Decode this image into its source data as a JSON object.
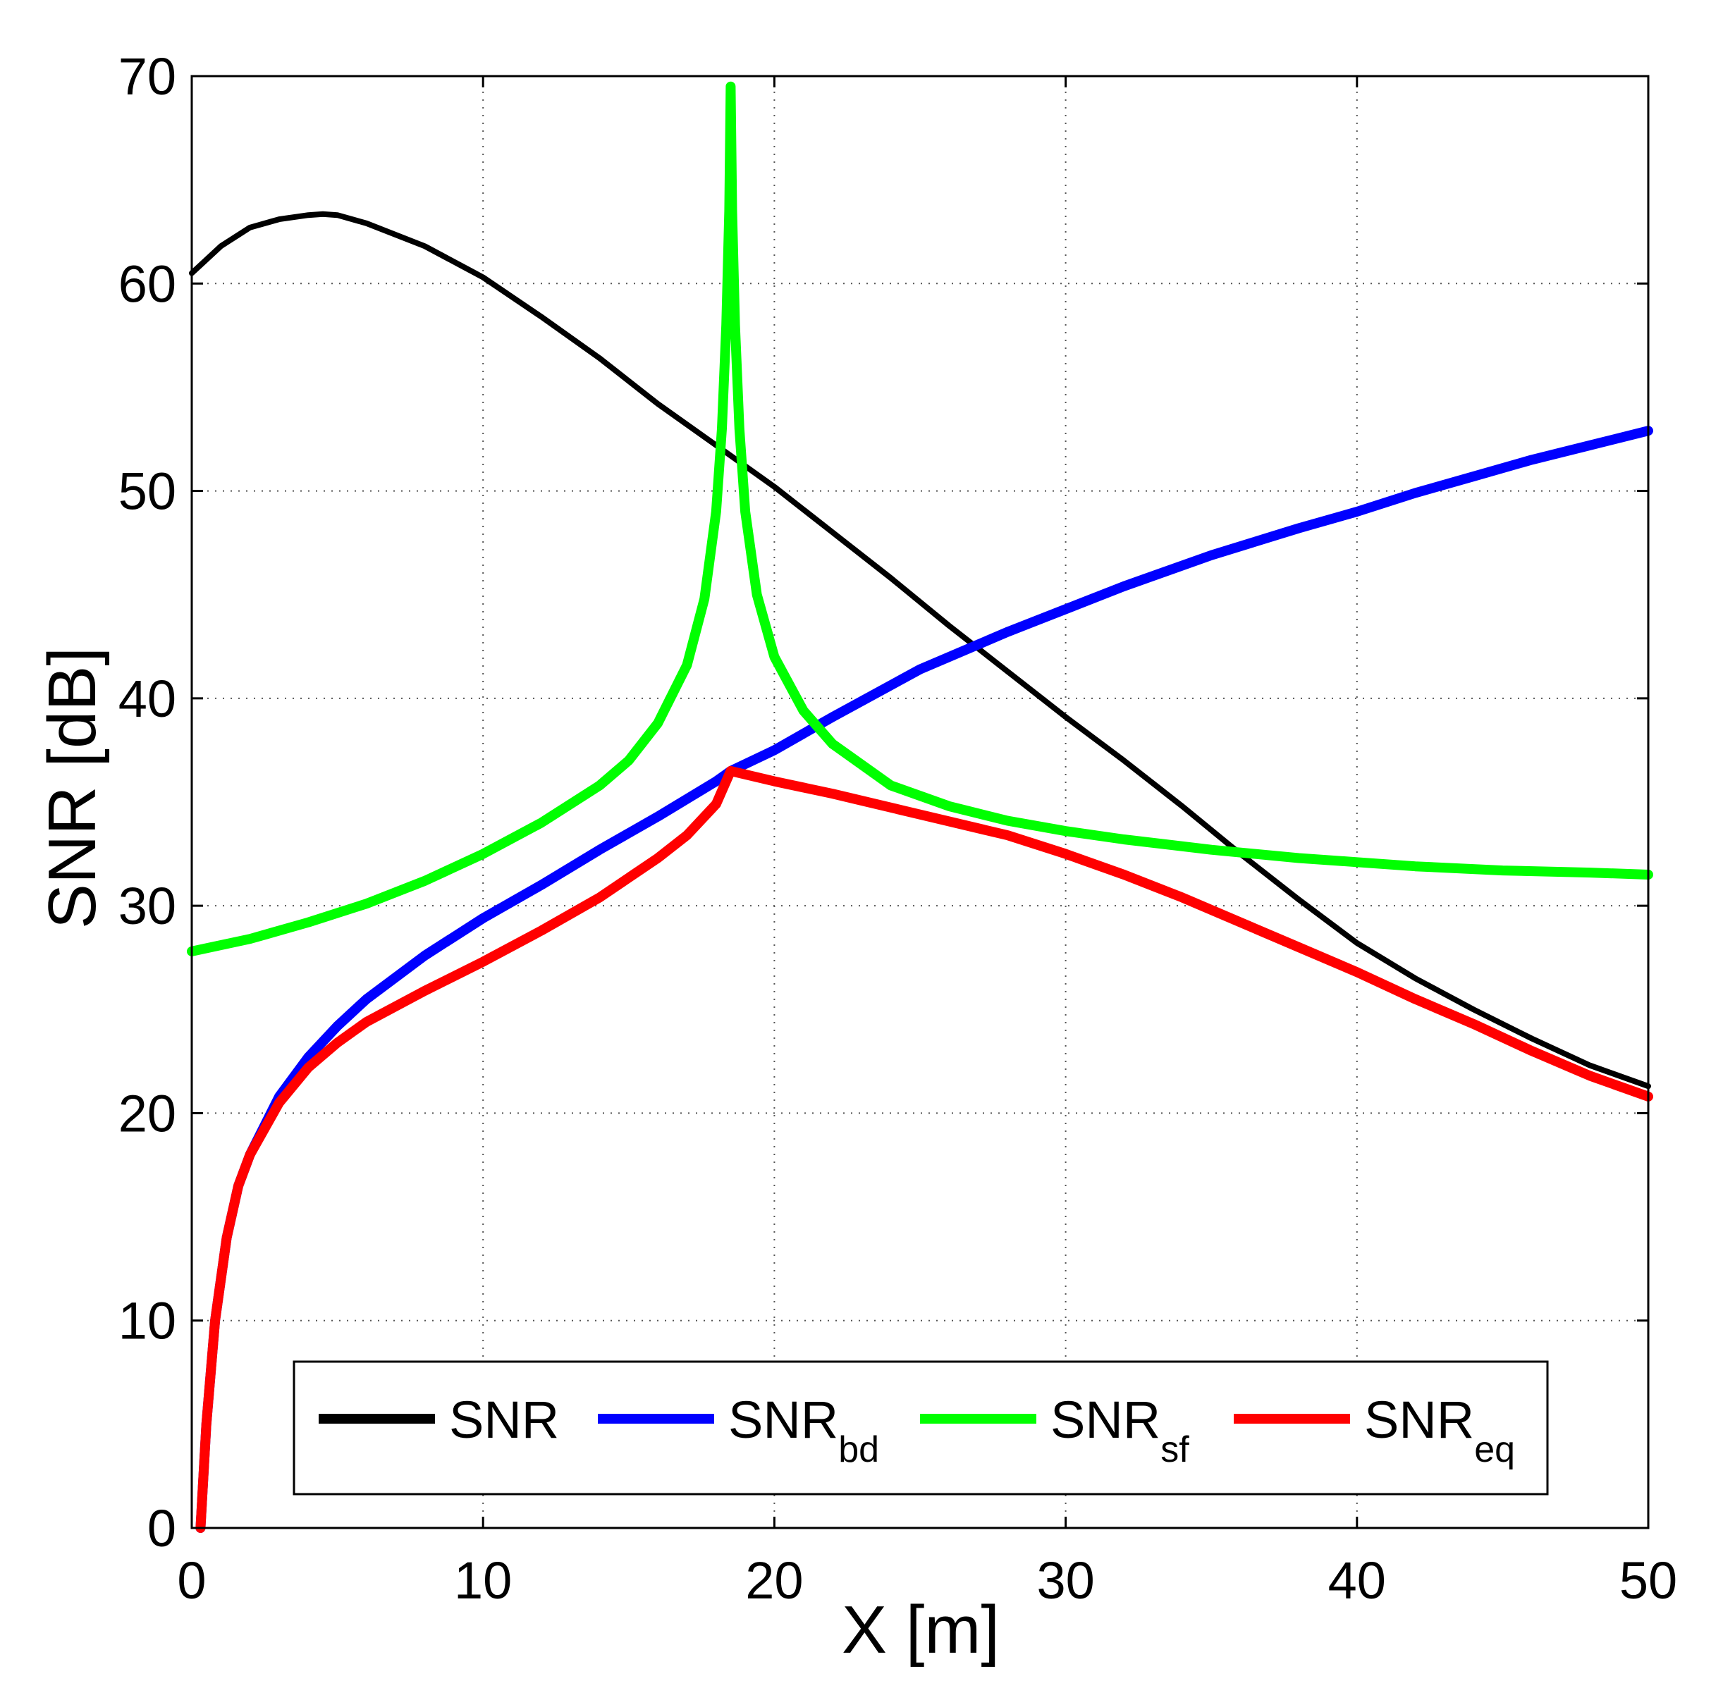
{
  "chart_data": {
    "type": "line",
    "title": "",
    "xlabel": "X [m]",
    "ylabel": "SNR [dB]",
    "xlim": [
      0,
      50
    ],
    "ylim": [
      0,
      70
    ],
    "xticks": [
      0,
      10,
      20,
      30,
      40,
      50
    ],
    "yticks": [
      0,
      10,
      20,
      30,
      40,
      50,
      60,
      70
    ],
    "xtick_labels": [
      "0",
      "10",
      "20",
      "30",
      "40",
      "50"
    ],
    "ytick_labels": [
      "0",
      "10",
      "20",
      "30",
      "40",
      "50",
      "60",
      "70"
    ],
    "grid": true,
    "legend_position": "bottom-center",
    "series": [
      {
        "name": "SNR",
        "label_main": "SNR",
        "label_sub": "",
        "color": "#000000",
        "x": [
          0,
          1,
          2,
          3,
          4,
          4.5,
          5,
          6,
          8,
          10,
          12,
          14,
          16,
          18,
          18.5,
          20,
          22,
          24,
          26,
          28,
          30,
          32,
          34,
          36,
          38,
          40,
          42,
          44,
          46,
          48,
          50
        ],
        "y": [
          60.5,
          61.8,
          62.7,
          63.1,
          63.3,
          63.35,
          63.3,
          62.9,
          61.8,
          60.3,
          58.4,
          56.4,
          54.2,
          52.2,
          51.7,
          50.2,
          48.0,
          45.8,
          43.5,
          41.3,
          39.1,
          37.0,
          34.8,
          32.5,
          30.3,
          28.2,
          26.5,
          25.0,
          23.6,
          22.3,
          21.3
        ]
      },
      {
        "name": "SNR_bd",
        "label_main": "SNR",
        "label_sub": "bd",
        "color": "#0000ff",
        "x": [
          0.3,
          0.5,
          0.8,
          1.2,
          1.6,
          2,
          3,
          4,
          5,
          6,
          8,
          10,
          12,
          14,
          16,
          18,
          18.5,
          20,
          22,
          25,
          28,
          30,
          32,
          35,
          38,
          40,
          42,
          44,
          46,
          48,
          50
        ],
        "y": [
          0,
          5,
          10,
          14,
          16.5,
          18,
          20.8,
          22.7,
          24.2,
          25.5,
          27.6,
          29.4,
          31,
          32.7,
          34.3,
          36.0,
          36.5,
          37.5,
          39.1,
          41.4,
          43.2,
          44.3,
          45.4,
          46.9,
          48.2,
          49.0,
          49.9,
          50.7,
          51.5,
          52.2,
          52.9
        ]
      },
      {
        "name": "SNR_sf",
        "label_main": "SNR",
        "label_sub": "sf",
        "color": "#00ff00",
        "x": [
          0,
          2,
          4,
          6,
          8,
          10,
          12,
          14,
          15,
          16,
          17,
          17.6,
          18,
          18.2,
          18.35,
          18.45,
          18.5,
          18.55,
          18.65,
          18.8,
          19,
          19.4,
          20,
          21,
          22,
          24,
          26,
          28,
          30,
          32,
          35,
          38,
          40,
          42,
          45,
          48,
          50
        ],
        "y": [
          27.8,
          28.4,
          29.2,
          30.1,
          31.2,
          32.5,
          34.0,
          35.8,
          37.0,
          38.8,
          41.6,
          44.8,
          49.0,
          53.0,
          58.0,
          63.5,
          69.5,
          63.5,
          58.0,
          53.0,
          49.0,
          45.0,
          42.0,
          39.4,
          37.8,
          35.8,
          34.8,
          34.1,
          33.6,
          33.2,
          32.7,
          32.3,
          32.1,
          31.9,
          31.7,
          31.6,
          31.5
        ]
      },
      {
        "name": "SNR_eq",
        "label_main": "SNR",
        "label_sub": "eq",
        "color": "#ff0000",
        "x": [
          0.3,
          0.5,
          0.8,
          1.2,
          1.6,
          2,
          3,
          4,
          5,
          6,
          8,
          10,
          12,
          14,
          16,
          17,
          18,
          18.5,
          20,
          22,
          25,
          28,
          30,
          32,
          34,
          36,
          38,
          40,
          42,
          44,
          46,
          48,
          50
        ],
        "y": [
          0,
          5,
          10,
          14,
          16.5,
          18,
          20.5,
          22.2,
          23.4,
          24.4,
          25.9,
          27.3,
          28.8,
          30.4,
          32.3,
          33.4,
          34.9,
          36.5,
          36.0,
          35.4,
          34.4,
          33.4,
          32.5,
          31.5,
          30.4,
          29.2,
          28.0,
          26.8,
          25.5,
          24.3,
          23.0,
          21.8,
          20.8
        ]
      }
    ]
  }
}
